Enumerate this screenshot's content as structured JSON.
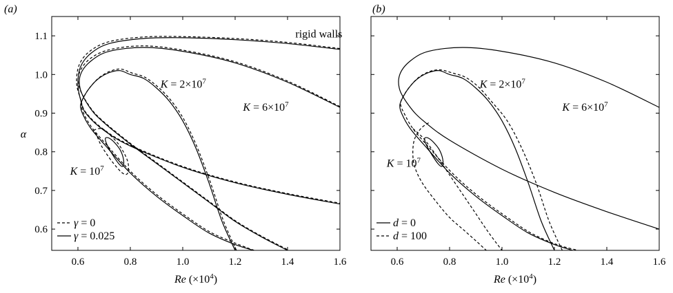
{
  "chart_data": [
    {
      "panel_label": "(a)",
      "type": "line",
      "xlabel": "Re (×10⁴)",
      "ylabel": "α",
      "xlim": [
        0.5,
        1.6
      ],
      "ylim": [
        0.545,
        1.15
      ],
      "xticks": [
        "0.6",
        "0.8",
        "1.0",
        "1.2",
        "1.4",
        "1.6"
      ],
      "yticks": [
        "0.6",
        "0.7",
        "0.8",
        "0.9",
        "1.0",
        "1.1"
      ],
      "legend_position": "bottom-left",
      "legend": [
        {
          "label": "γ = 0",
          "style": "dashed"
        },
        {
          "label": "γ = 0.025",
          "style": "solid"
        }
      ],
      "annotations": [
        {
          "text": "rigid walls",
          "x": 1.43,
          "y": 1.105
        },
        {
          "text": "K = 2×10⁷",
          "x": 0.915,
          "y": 0.975
        },
        {
          "text": "K = 6×10⁷",
          "x": 1.23,
          "y": 0.915
        },
        {
          "text": "K = 10⁷",
          "x": 0.57,
          "y": 0.75
        }
      ],
      "series": [
        {
          "label_ref": "rigid walls",
          "style": "solid",
          "closed": false,
          "x": [
            1.6,
            1.4,
            1.2,
            1.0,
            0.85,
            0.72,
            0.65,
            0.61,
            0.6,
            0.61,
            0.63,
            0.7,
            0.8,
            1.0,
            1.2,
            1.4,
            1.6
          ],
          "y": [
            1.065,
            1.08,
            1.09,
            1.095,
            1.093,
            1.08,
            1.055,
            1.02,
            0.975,
            0.935,
            0.9,
            0.855,
            0.815,
            0.76,
            0.72,
            0.69,
            0.665
          ]
        },
        {
          "label_ref": "rigid walls",
          "style": "dashed",
          "closed": false,
          "x": [
            1.6,
            1.4,
            1.2,
            1.0,
            0.85,
            0.72,
            0.645,
            0.605,
            0.595,
            0.61,
            0.63,
            0.7,
            0.8,
            1.0,
            1.2,
            1.4,
            1.6
          ],
          "y": [
            1.067,
            1.083,
            1.093,
            1.098,
            1.097,
            1.085,
            1.06,
            1.025,
            0.978,
            0.937,
            0.902,
            0.857,
            0.817,
            0.762,
            0.722,
            0.692,
            0.667
          ]
        },
        {
          "label_ref": "K = 6×10⁷",
          "style": "solid",
          "closed": false,
          "x": [
            1.6,
            1.4,
            1.2,
            1.0,
            0.85,
            0.72,
            0.65,
            0.61,
            0.61,
            0.65,
            0.7,
            0.8,
            0.9,
            1.0,
            1.1,
            1.2,
            1.3,
            1.4
          ],
          "y": [
            0.915,
            0.98,
            1.03,
            1.06,
            1.07,
            1.06,
            1.035,
            1.0,
            0.96,
            0.91,
            0.875,
            0.82,
            0.77,
            0.72,
            0.67,
            0.62,
            0.58,
            0.545
          ]
        },
        {
          "label_ref": "K = 6×10⁷",
          "style": "dashed",
          "closed": false,
          "x": [
            1.6,
            1.4,
            1.2,
            1.0,
            0.85,
            0.72,
            0.645,
            0.605,
            0.607,
            0.65,
            0.7,
            0.8,
            0.9,
            1.0,
            1.1,
            1.2,
            1.3,
            1.4
          ],
          "y": [
            0.917,
            0.983,
            1.033,
            1.063,
            1.074,
            1.064,
            1.04,
            1.003,
            0.963,
            0.912,
            0.877,
            0.822,
            0.772,
            0.722,
            0.672,
            0.622,
            0.582,
            0.547
          ]
        },
        {
          "label_ref": "K = 2×10⁷",
          "style": "solid",
          "closed": false,
          "x": [
            1.2,
            1.15,
            1.1,
            1.05,
            1.0,
            0.95,
            0.9,
            0.85,
            0.8,
            0.76,
            0.72,
            0.68,
            0.65,
            0.625,
            0.61,
            0.62,
            0.65,
            0.7,
            0.8,
            0.9,
            1.0,
            1.1,
            1.2,
            1.27
          ],
          "y": [
            0.545,
            0.62,
            0.72,
            0.81,
            0.88,
            0.93,
            0.965,
            0.99,
            1.0,
            1.01,
            1.005,
            0.99,
            0.97,
            0.945,
            0.92,
            0.895,
            0.86,
            0.82,
            0.745,
            0.685,
            0.635,
            0.59,
            0.56,
            0.545
          ]
        },
        {
          "label_ref": "K = 2×10⁷",
          "style": "dashed",
          "closed": false,
          "x": [
            1.205,
            1.155,
            1.105,
            1.055,
            1.005,
            0.955,
            0.905,
            0.855,
            0.805,
            0.765,
            0.725,
            0.685,
            0.655,
            0.628,
            0.613,
            0.623,
            0.653,
            0.703,
            0.803,
            0.903,
            1.003,
            1.103,
            1.203,
            1.273
          ],
          "y": [
            0.545,
            0.622,
            0.722,
            0.812,
            0.883,
            0.933,
            0.968,
            0.993,
            1.004,
            1.014,
            1.009,
            0.994,
            0.974,
            0.949,
            0.924,
            0.898,
            0.863,
            0.823,
            0.748,
            0.688,
            0.638,
            0.593,
            0.563,
            0.545
          ]
        },
        {
          "label_ref": "K = 10⁷",
          "style": "solid",
          "closed": true,
          "x": [
            0.705,
            0.72,
            0.745,
            0.765,
            0.775,
            0.77,
            0.755,
            0.73,
            0.71
          ],
          "y": [
            0.835,
            0.835,
            0.82,
            0.8,
            0.775,
            0.762,
            0.77,
            0.795,
            0.82
          ]
        },
        {
          "label_ref": "K = 10⁷",
          "style": "dashed",
          "closed": true,
          "x": [
            0.66,
            0.69,
            0.72,
            0.76,
            0.79,
            0.79,
            0.77,
            0.73,
            0.69,
            0.67
          ],
          "y": [
            0.855,
            0.86,
            0.845,
            0.815,
            0.775,
            0.745,
            0.745,
            0.775,
            0.815,
            0.845
          ]
        }
      ]
    },
    {
      "panel_label": "(b)",
      "type": "line",
      "xlabel": "Re (×10⁴)",
      "ylabel": "",
      "xlim": [
        0.5,
        1.6
      ],
      "ylim": [
        0.545,
        1.15
      ],
      "xticks": [
        "0.6",
        "0.8",
        "1.0",
        "1.2",
        "1.4",
        "1.6"
      ],
      "yticks": [],
      "legend_position": "bottom-left",
      "legend": [
        {
          "label": "d = 0",
          "style": "solid"
        },
        {
          "label": "d = 100",
          "style": "dashed"
        }
      ],
      "annotations": [
        {
          "text": "K = 2×10⁷",
          "x": 0.915,
          "y": 0.975
        },
        {
          "text": "K = 6×10⁷",
          "x": 1.23,
          "y": 0.915
        },
        {
          "text": "K = 10⁷",
          "x": 0.56,
          "y": 0.77
        }
      ],
      "series": [
        {
          "label_ref": "K = 6×10⁷",
          "style": "solid",
          "closed": false,
          "x": [
            1.6,
            1.4,
            1.2,
            1.0,
            0.85,
            0.72,
            0.65,
            0.61,
            0.61,
            0.65,
            0.7,
            0.8,
            1.0,
            1.2,
            1.4,
            1.6
          ],
          "y": [
            0.915,
            0.98,
            1.03,
            1.06,
            1.07,
            1.06,
            1.035,
            1.0,
            0.96,
            0.915,
            0.88,
            0.83,
            0.755,
            0.695,
            0.645,
            0.6
          ]
        },
        {
          "label_ref": "K = 2×10⁷",
          "style": "solid",
          "closed": false,
          "x": [
            1.2,
            1.15,
            1.1,
            1.05,
            1.0,
            0.95,
            0.9,
            0.85,
            0.8,
            0.76,
            0.72,
            0.68,
            0.65,
            0.625,
            0.61,
            0.62,
            0.65,
            0.7,
            0.8,
            0.9,
            1.0,
            1.1,
            1.2,
            1.27
          ],
          "y": [
            0.545,
            0.62,
            0.72,
            0.81,
            0.88,
            0.93,
            0.965,
            0.99,
            1.0,
            1.01,
            1.005,
            0.99,
            0.97,
            0.945,
            0.92,
            0.895,
            0.86,
            0.82,
            0.745,
            0.685,
            0.635,
            0.59,
            0.56,
            0.545
          ]
        },
        {
          "label_ref": "K = 2×10⁷",
          "style": "dashed",
          "closed": false,
          "x": [
            1.23,
            1.18,
            1.13,
            1.075,
            1.02,
            0.96,
            0.91,
            0.86,
            0.81,
            0.765,
            0.725,
            0.685,
            0.655,
            0.628,
            0.613,
            0.63,
            0.66,
            0.71,
            0.81,
            0.91,
            1.01,
            1.11,
            1.21,
            1.29
          ],
          "y": [
            0.545,
            0.62,
            0.72,
            0.81,
            0.88,
            0.93,
            0.968,
            0.993,
            1.004,
            1.012,
            1.008,
            0.994,
            0.974,
            0.949,
            0.924,
            0.895,
            0.86,
            0.82,
            0.745,
            0.685,
            0.635,
            0.59,
            0.56,
            0.545
          ]
        },
        {
          "label_ref": "K = 10⁷",
          "style": "solid",
          "closed": true,
          "x": [
            0.705,
            0.72,
            0.745,
            0.765,
            0.775,
            0.77,
            0.755,
            0.73,
            0.71
          ],
          "y": [
            0.835,
            0.835,
            0.82,
            0.8,
            0.775,
            0.762,
            0.77,
            0.795,
            0.82
          ]
        },
        {
          "label_ref": "d = 100",
          "style": "dashed",
          "closed": false,
          "x": [
            0.72,
            0.69,
            0.665,
            0.66,
            0.67,
            0.7,
            0.75,
            0.8,
            0.85,
            0.9,
            0.94
          ],
          "y": [
            0.875,
            0.86,
            0.83,
            0.79,
            0.755,
            0.715,
            0.67,
            0.63,
            0.6,
            0.57,
            0.545
          ]
        },
        {
          "label_ref": "d = 100",
          "style": "dashed",
          "closed": false,
          "x": [
            0.66,
            0.7,
            0.75,
            0.8,
            0.85,
            0.9,
            0.95,
            1.0
          ],
          "y": [
            0.86,
            0.835,
            0.79,
            0.74,
            0.69,
            0.64,
            0.59,
            0.545
          ]
        }
      ]
    }
  ]
}
